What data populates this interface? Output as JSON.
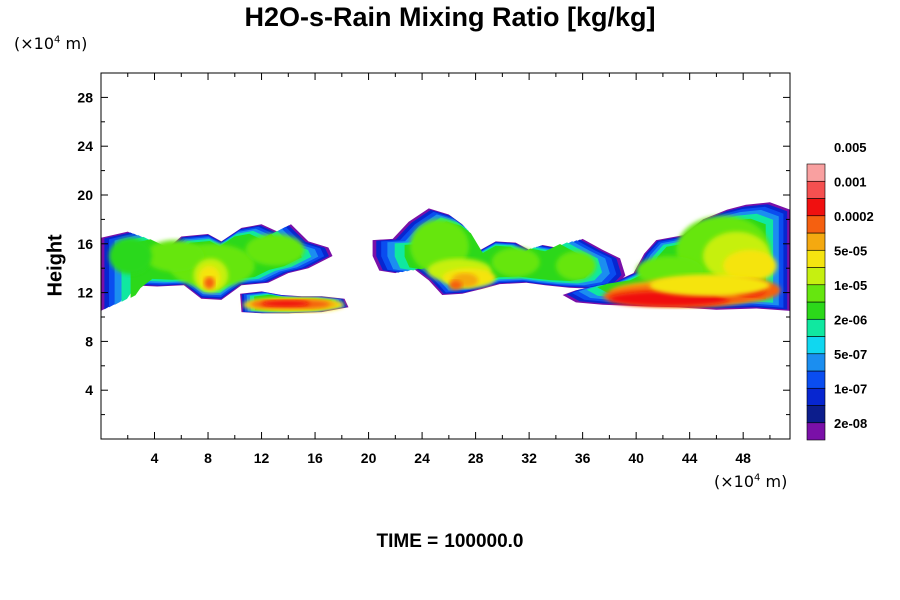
{
  "chart_data": {
    "type": "heatmap",
    "title": "H2O-s-Rain Mixing Ratio [kg/kg]",
    "ylabel": "Height",
    "xlabel": "",
    "x_unit": "(×10",
    "x_unit_exp": "4",
    "x_unit_tail": " m)",
    "y_unit": "(×10",
    "y_unit_exp": "4",
    "y_unit_tail": " m)",
    "xlim": [
      0,
      51.5
    ],
    "ylim": [
      0,
      30
    ],
    "xticks": [
      4,
      8,
      12,
      16,
      20,
      24,
      28,
      32,
      36,
      40,
      44,
      48
    ],
    "xtick_labels": [
      "4",
      "8",
      "12",
      "16",
      "20",
      "24",
      "28",
      "32",
      "36",
      "40",
      "44",
      "48"
    ],
    "yticks": [
      4,
      8,
      12,
      16,
      20,
      24,
      28
    ],
    "ytick_labels": [
      "4",
      "8",
      "12",
      "16",
      "20",
      "24",
      "28"
    ],
    "colorbar": {
      "colors": [
        "#7a10a8",
        "#0c1d8c",
        "#0726d0",
        "#0a4df0",
        "#1b8ef0",
        "#10d7f0",
        "#10e8a0",
        "#2cd81a",
        "#66e60f",
        "#c6f010",
        "#f5e410",
        "#f4a910",
        "#f56010",
        "#f01010",
        "#f55050",
        "#f9a0a0"
      ],
      "labels": [
        "2e-08",
        "1e-07",
        "5e-07",
        "2e-06",
        "1e-05",
        "5e-05",
        "0.0002",
        "0.001",
        "0.005"
      ]
    },
    "time_label": "TIME =",
    "time_value": "100000.0",
    "grid": false
  }
}
